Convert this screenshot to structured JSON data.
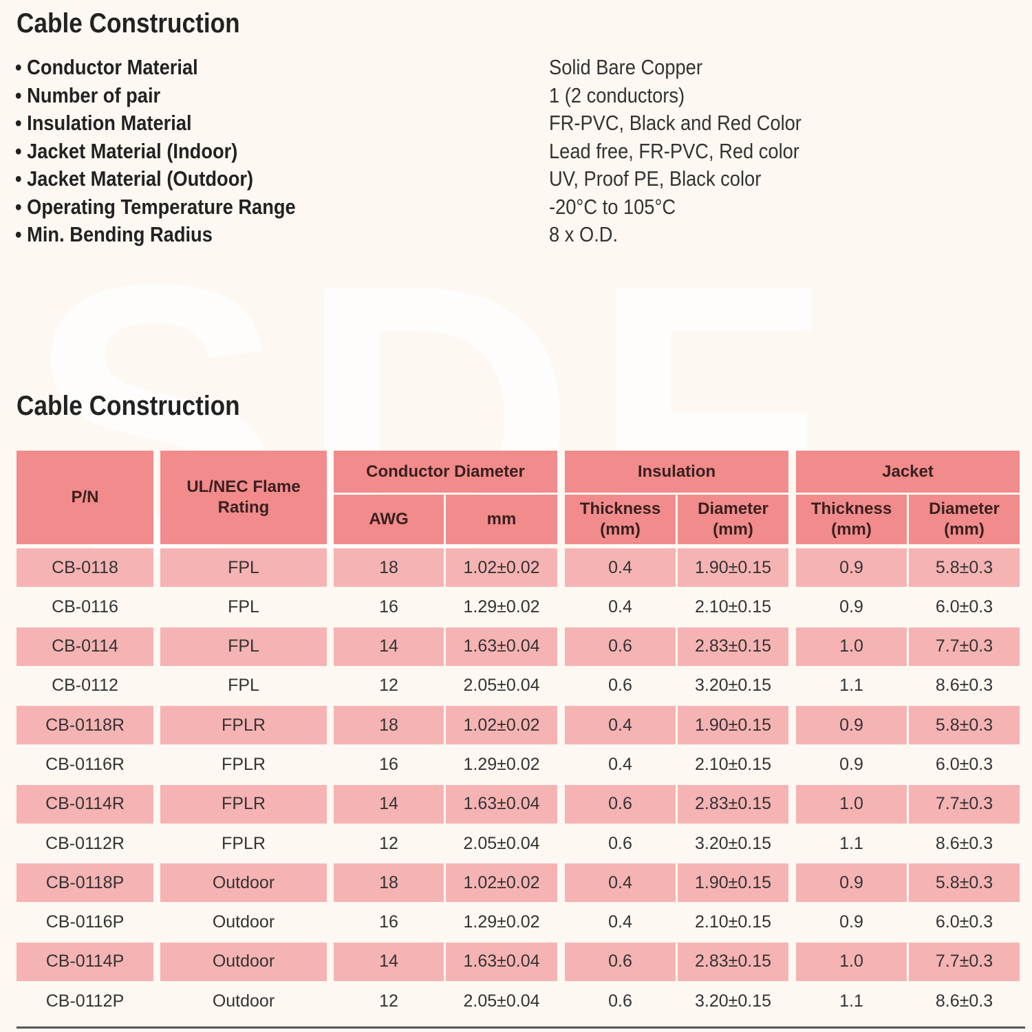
{
  "watermark": "SDF",
  "specs": {
    "title": "Cable Construction",
    "items": [
      {
        "label": "• Conductor Material",
        "value": "Solid Bare Copper"
      },
      {
        "label": "• Number of pair",
        "value": "1 (2 conductors)"
      },
      {
        "label": "• Insulation Material",
        "value": "FR-PVC, Black and Red Color"
      },
      {
        "label": "• Jacket Material (Indoor)",
        "value": "Lead free, FR-PVC, Red color"
      },
      {
        "label": "• Jacket Material (Outdoor)",
        "value": "UV, Proof PE, Black color"
      },
      {
        "label": "• Operating Temperature Range",
        "value": "-20°C to 105°C"
      },
      {
        "label": "• Min. Bending Radius",
        "value": "8 x O.D."
      }
    ]
  },
  "table": {
    "title": "Cable Construction",
    "header_color": "#f28b8b",
    "row_shade_color": "#f6b3b3",
    "headers": {
      "pn": "P/N",
      "flame": "UL/NEC Flame Rating",
      "conductor": "Conductor Diameter",
      "awg": "AWG",
      "mm": "mm",
      "insulation": "Insulation",
      "ins_thickness": "Thickness (mm)",
      "ins_diameter": "Diameter (mm)",
      "jacket": "Jacket",
      "jac_thickness": "Thickness (mm)",
      "jac_diameter": "Diameter (mm)"
    },
    "rows": [
      [
        "CB-0118",
        "FPL",
        "18",
        "1.02±0.02",
        "0.4",
        "1.90±0.15",
        "0.9",
        "5.8±0.3"
      ],
      [
        "CB-0116",
        "FPL",
        "16",
        "1.29±0.02",
        "0.4",
        "2.10±0.15",
        "0.9",
        "6.0±0.3"
      ],
      [
        "CB-0114",
        "FPL",
        "14",
        "1.63±0.04",
        "0.6",
        "2.83±0.15",
        "1.0",
        "7.7±0.3"
      ],
      [
        "CB-0112",
        "FPL",
        "12",
        "2.05±0.04",
        "0.6",
        "3.20±0.15",
        "1.1",
        "8.6±0.3"
      ],
      [
        "CB-0118R",
        "FPLR",
        "18",
        "1.02±0.02",
        "0.4",
        "1.90±0.15",
        "0.9",
        "5.8±0.3"
      ],
      [
        "CB-0116R",
        "FPLR",
        "16",
        "1.29±0.02",
        "0.4",
        "2.10±0.15",
        "0.9",
        "6.0±0.3"
      ],
      [
        "CB-0114R",
        "FPLR",
        "14",
        "1.63±0.04",
        "0.6",
        "2.83±0.15",
        "1.0",
        "7.7±0.3"
      ],
      [
        "CB-0112R",
        "FPLR",
        "12",
        "2.05±0.04",
        "0.6",
        "3.20±0.15",
        "1.1",
        "8.6±0.3"
      ],
      [
        "CB-0118P",
        "Outdoor",
        "18",
        "1.02±0.02",
        "0.4",
        "1.90±0.15",
        "0.9",
        "5.8±0.3"
      ],
      [
        "CB-0116P",
        "Outdoor",
        "16",
        "1.29±0.02",
        "0.4",
        "2.10±0.15",
        "0.9",
        "6.0±0.3"
      ],
      [
        "CB-0114P",
        "Outdoor",
        "14",
        "1.63±0.04",
        "0.6",
        "2.83±0.15",
        "1.0",
        "7.7±0.3"
      ],
      [
        "CB-0112P",
        "Outdoor",
        "12",
        "2.05±0.04",
        "0.6",
        "3.20±0.15",
        "1.1",
        "8.6±0.3"
      ]
    ]
  }
}
